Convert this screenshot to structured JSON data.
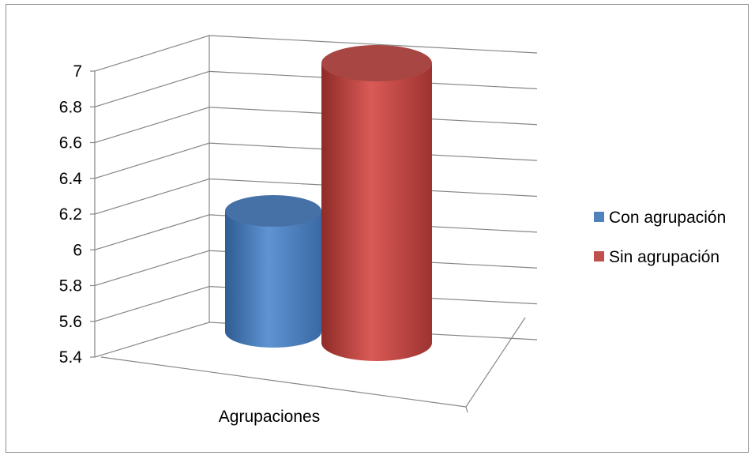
{
  "chart_data": {
    "type": "bar",
    "style": "3d-cylinder",
    "categories": [
      "Agrupaciones"
    ],
    "series": [
      {
        "name": "Con agrupación",
        "values": [
          6.12
        ],
        "color": "#4F81BD"
      },
      {
        "name": "Sin agrupación",
        "values": [
          7.0
        ],
        "color": "#C0504D"
      }
    ],
    "title": "",
    "xlabel": "",
    "ylabel": "",
    "ylim": [
      5.4,
      7.0
    ],
    "yticks": [
      "5.4",
      "5.6",
      "5.8",
      "6",
      "6.2",
      "6.4",
      "6.6",
      "6.8",
      "7"
    ],
    "grid": true,
    "legend": "right"
  }
}
